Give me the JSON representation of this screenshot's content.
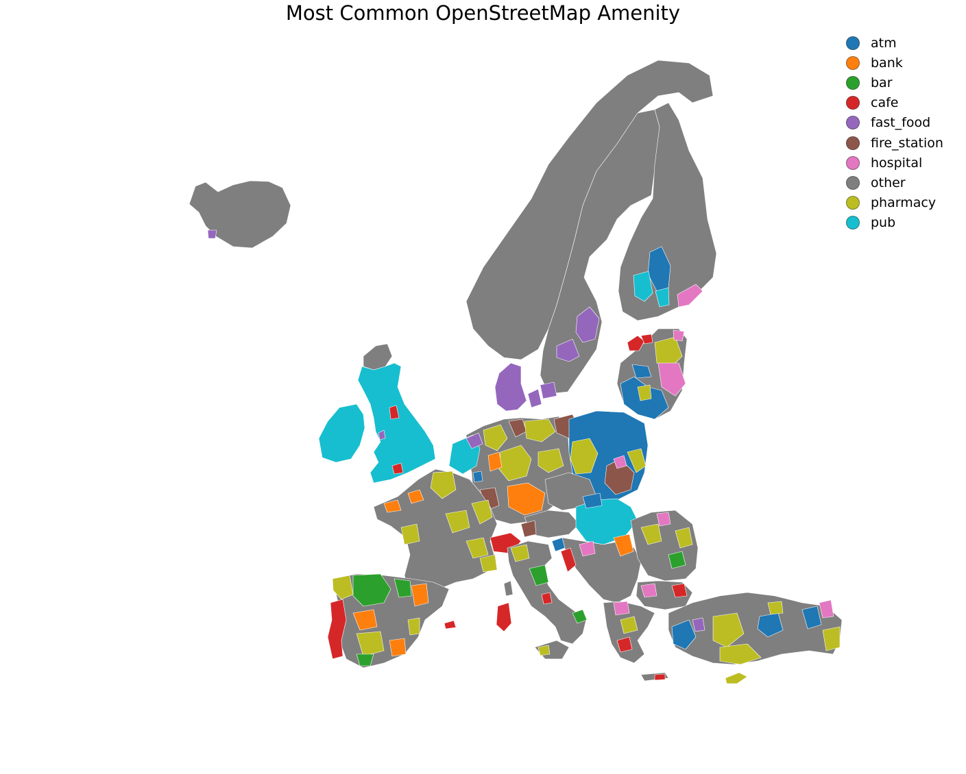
{
  "title": "Most Common OpenStreetMap Amenity",
  "legend": [
    {
      "label": "atm",
      "color": "#1f77b4"
    },
    {
      "label": "bank",
      "color": "#ff7f0e"
    },
    {
      "label": "bar",
      "color": "#2ca02c"
    },
    {
      "label": "cafe",
      "color": "#d62728"
    },
    {
      "label": "fast_food",
      "color": "#9467bd"
    },
    {
      "label": "fire_station",
      "color": "#8c564b"
    },
    {
      "label": "hospital",
      "color": "#e377c2"
    },
    {
      "label": "other",
      "color": "#7f7f7f"
    },
    {
      "label": "pharmacy",
      "color": "#bcbd22"
    },
    {
      "label": "pub",
      "color": "#17becf"
    }
  ],
  "regions": [
    {
      "name": "Iceland",
      "category": "other"
    },
    {
      "name": "Norway",
      "category": "other"
    },
    {
      "name": "Sweden",
      "category": "other"
    },
    {
      "name": "Finland",
      "category": "other"
    },
    {
      "name": "Ireland",
      "category": "pub"
    },
    {
      "name": "United Kingdom",
      "category": "pub"
    },
    {
      "name": "Scotland Highlands",
      "category": "other"
    },
    {
      "name": "Denmark",
      "category": "fast_food"
    },
    {
      "name": "Poland",
      "category": "atm"
    },
    {
      "name": "Hungary",
      "category": "pub"
    },
    {
      "name": "Baltic States",
      "category": "atm"
    },
    {
      "name": "Spain",
      "category": "other"
    },
    {
      "name": "Portugal",
      "category": "cafe"
    },
    {
      "name": "France",
      "category": "other"
    },
    {
      "name": "Germany",
      "category": "other"
    },
    {
      "name": "Italy",
      "category": "other"
    },
    {
      "name": "Balkans",
      "category": "other"
    },
    {
      "name": "Romania",
      "category": "other"
    },
    {
      "name": "Greece",
      "category": "other"
    },
    {
      "name": "Turkey",
      "category": "other"
    },
    {
      "name": "Cyprus",
      "category": "pharmacy"
    }
  ]
}
